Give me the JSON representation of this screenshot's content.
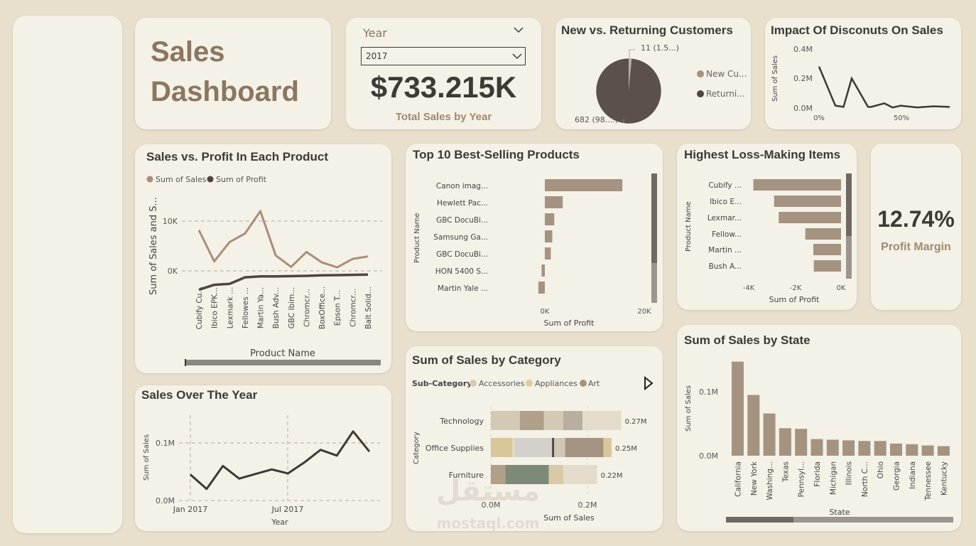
{
  "header": {
    "title_line1": "Sales",
    "title_line2": "Dashboard"
  },
  "year_filter": {
    "label": "Year",
    "selected": "2017"
  },
  "total_sales": {
    "value": "$733.215K",
    "label": "Total Sales by Year"
  },
  "customers": {
    "title": "New vs. Returning Customers",
    "label_small": "11 (1.5...)",
    "label_large": "682 (98....)",
    "legend": [
      "New Cu...",
      "Returni..."
    ]
  },
  "discounts": {
    "title": "Impact Of Disconuts On Sales",
    "ylabel": "Sum of Sales",
    "yticks": [
      "0.4M",
      "0.2M",
      "0.0M"
    ],
    "xticks": [
      "0%",
      "50%"
    ]
  },
  "sales_profit": {
    "title": "Sales vs. Profit In Each Product",
    "legend": [
      "Sum of Sales",
      "Sum of Profit"
    ],
    "ylabel": "Sum of Sales and S...",
    "yticks": [
      "10K",
      "0K"
    ],
    "xlabel": "Product Name",
    "products": [
      "Cubify Cu...",
      "Ibico EPK...",
      "Lexmark ...",
      "Fellowes ...",
      "Martin Ya...",
      "Bush Adv...",
      "GBC Ibim...",
      "Chromcr...",
      "BoxOffice...",
      "Epson T...",
      "Chromcr...",
      "Balt Solid..."
    ]
  },
  "top10": {
    "title": "Top 10 Best-Selling Products",
    "ylabel": "Product Name",
    "xlabel": "Sum of Profit",
    "products": [
      "Canon imag...",
      "Hewlett Pac...",
      "GBC DocuBi...",
      "Samsung Ga...",
      "GBC DocuBi...",
      "HON 5400 S...",
      "Martin Yale ..."
    ],
    "xticks": [
      "0K",
      "20K"
    ]
  },
  "loss": {
    "title": "Highest Loss-Making Items",
    "ylabel": "Product Name",
    "xlabel": "Sum of Profit",
    "products": [
      "Cubify ...",
      "Ibico E...",
      "Lexmar...",
      "Fellow...",
      "Martin ...",
      "Bush A..."
    ],
    "xticks": [
      "-4K",
      "-2K",
      "0K"
    ]
  },
  "margin": {
    "value": "12.74%",
    "label": "Profit Margin"
  },
  "over_year": {
    "title": "Sales Over The Year",
    "ylabel": "Sum of Sales",
    "xlabel": "Year",
    "yticks": [
      "0.1M",
      "0.0M"
    ],
    "xticks": [
      "Jan 2017",
      "Jul 2017"
    ]
  },
  "category": {
    "title": "Sum of Sales by Category",
    "legend_title": "Sub-Category",
    "legend": [
      "Accessories",
      "Appliances",
      "Art"
    ],
    "ylabel": "Category",
    "xlabel": "Sum of Sales",
    "categories": [
      "Technology",
      "Office Supplies",
      "Furniture"
    ],
    "totals": [
      "0.27M",
      "0.25M",
      "0.22M"
    ],
    "xticks": [
      "0.0M",
      "0.2M"
    ]
  },
  "state": {
    "title": "Sum of Sales by State",
    "ylabel": "Sum of Sales",
    "xlabel": "State",
    "yticks": [
      "0.1M",
      "0.0M"
    ],
    "states": [
      "California",
      "New York",
      "Washing...",
      "Texas",
      "Pennsyl...",
      "Florida",
      "Michigan",
      "Illinois",
      "North C...",
      "Ohio",
      "Georgia",
      "Indiana",
      "Tennessee",
      "Kentucky"
    ]
  },
  "watermark": {
    "arabic": "مستقل",
    "latin": "mostaql.com"
  },
  "colors": {
    "bg": "#e8e0cc",
    "card": "#f4f1e7",
    "dark": "#3d3935",
    "accent": "#8b7660",
    "bar": "#a39380",
    "line_light": "#a88e7c",
    "line_dark": "#4d4540"
  },
  "chart_data": [
    {
      "type": "pie",
      "title": "New vs. Returning Customers",
      "categories": [
        "New Cu...",
        "Returni..."
      ],
      "values": [
        11,
        682
      ]
    },
    {
      "type": "line",
      "title": "Impact Of Disconuts On Sales",
      "ylabel": "Sum of Sales",
      "x": [
        0,
        0.1,
        0.15,
        0.2,
        0.3,
        0.32,
        0.4,
        0.45,
        0.5,
        0.6,
        0.7,
        0.8
      ],
      "values": [
        0.35,
        0.02,
        0.01,
        0.25,
        0.01,
        0.01,
        0.04,
        0.005,
        0.02,
        0.005,
        0.015,
        0.01
      ],
      "ylim": [
        0,
        0.45
      ]
    },
    {
      "type": "line",
      "title": "Sales vs. Profit In Each Product",
      "xlabel": "Product Name",
      "ylabel": "Sum of Sales and S...",
      "categories": [
        "Cubify Cu...",
        "Ibico EPK...",
        "Lexmark ...",
        "Fellowes ...",
        "Martin Ya...",
        "Bush Adv...",
        "GBC Ibim...",
        "Chromcr...",
        "BoxOffice...",
        "Epson T...",
        "Chromcr...",
        "Balt Solid..."
      ],
      "series": [
        {
          "name": "Sum of Sales",
          "values": [
            8200,
            1900,
            5800,
            7500,
            12000,
            3100,
            800,
            3800,
            1700,
            700,
            2400,
            2900
          ]
        },
        {
          "name": "Sum of Profit",
          "values": [
            -3800,
            -2800,
            -2600,
            -1300,
            -1100,
            -1100,
            -1050,
            -1000,
            -900,
            -850,
            -800,
            -750
          ]
        }
      ],
      "ylim": [
        -5000,
        13000
      ]
    },
    {
      "type": "bar",
      "title": "Top 10 Best-Selling Products",
      "xlabel": "Sum of Profit",
      "ylabel": "Product Name",
      "categories": [
        "Canon imag...",
        "Hewlett Pac...",
        "GBC DocuBi...",
        "Samsung Ga...",
        "GBC DocuBi...",
        "HON 5400 S...",
        "Martin Yale ..."
      ],
      "values": [
        15600,
        3600,
        1900,
        1500,
        1200,
        -650,
        -1300
      ],
      "xlim": [
        -2000,
        22000
      ]
    },
    {
      "type": "bar",
      "title": "Highest Loss-Making Items",
      "xlabel": "Sum of Profit",
      "ylabel": "Product Name",
      "categories": [
        "Cubify ...",
        "Ibico E...",
        "Lexmar...",
        "Fellow...",
        "Martin ...",
        "Bush A..."
      ],
      "values": [
        -3800,
        -2900,
        -2700,
        -1550,
        -1200,
        -1180
      ],
      "xlim": [
        -4400,
        0
      ]
    },
    {
      "type": "line",
      "title": "Sales Over The Year",
      "xlabel": "Year",
      "ylabel": "Sum of Sales",
      "x": [
        "2017-01",
        "2017-02",
        "2017-03",
        "2017-04",
        "2017-05",
        "2017-06",
        "2017-07",
        "2017-08",
        "2017-09",
        "2017-10",
        "2017-11",
        "2017-12"
      ],
      "values": [
        0.045,
        0.02,
        0.06,
        0.038,
        0.046,
        0.054,
        0.047,
        0.066,
        0.088,
        0.078,
        0.12,
        0.085
      ],
      "ylim": [
        0,
        0.14
      ]
    },
    {
      "type": "bar",
      "title": "Sum of Sales by Category",
      "xlabel": "Sum of Sales",
      "ylabel": "Category",
      "categories": [
        "Technology",
        "Office Supplies",
        "Furniture"
      ],
      "values": [
        0.27,
        0.25,
        0.22
      ],
      "xlim": [
        0,
        0.3
      ]
    },
    {
      "type": "bar",
      "title": "Sum of Sales by State",
      "xlabel": "State",
      "ylabel": "Sum of Sales",
      "categories": [
        "California",
        "New York",
        "Washing...",
        "Texas",
        "Pennsyl...",
        "Florida",
        "Michigan",
        "Illinois",
        "North C...",
        "Ohio",
        "Georgia",
        "Indiana",
        "Tennessee",
        "Kentucky"
      ],
      "values": [
        0.147,
        0.095,
        0.066,
        0.043,
        0.042,
        0.026,
        0.025,
        0.024,
        0.023,
        0.023,
        0.019,
        0.018,
        0.016,
        0.015
      ],
      "ylim": [
        0,
        0.16
      ]
    }
  ]
}
